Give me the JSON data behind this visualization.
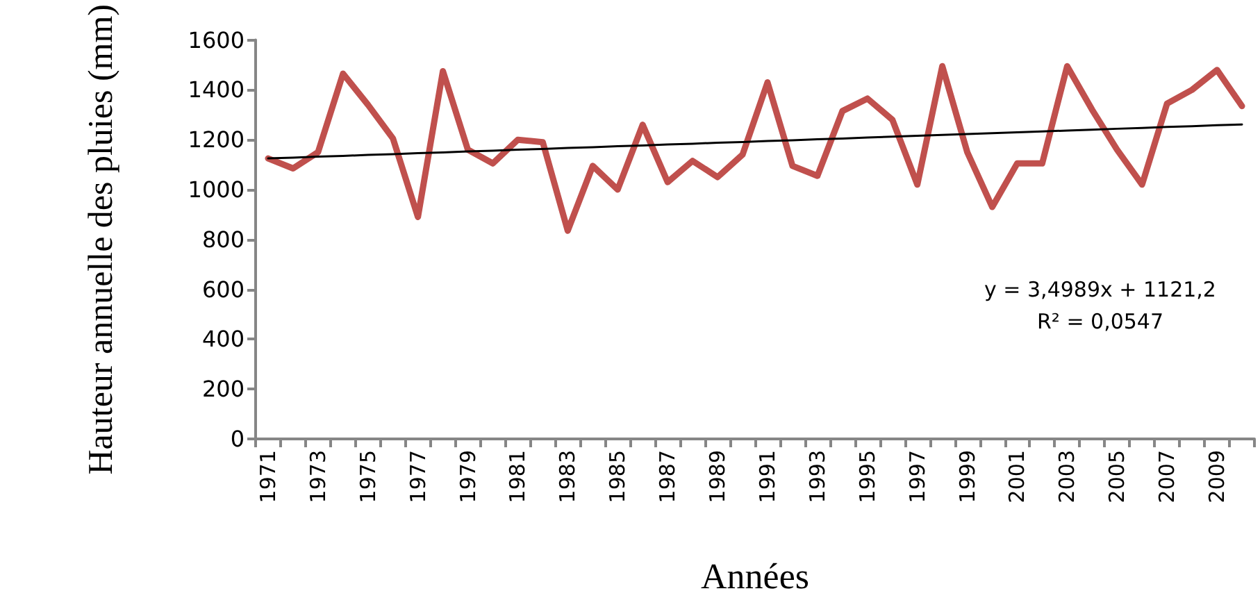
{
  "chart_data": {
    "type": "line",
    "xlabel": "Années",
    "ylabel": "Hauteur annuelle des pluies (mm)",
    "categories": [
      "1971",
      null,
      "1973",
      null,
      "1975",
      null,
      "1977",
      null,
      "1979",
      null,
      "1981",
      null,
      "1983",
      null,
      "1985",
      null,
      "1987",
      null,
      "1989",
      null,
      "1991",
      null,
      "1993",
      null,
      "1995",
      null,
      "1997",
      null,
      "1999",
      null,
      "2001",
      null,
      "2003",
      null,
      "2005",
      null,
      "2007",
      null,
      "2009",
      null
    ],
    "series": [
      {
        "color": "#c0504d",
        "values": [
          1125,
          1085,
          1150,
          1465,
          1340,
          1205,
          890,
          1475,
          1160,
          1105,
          1200,
          1190,
          835,
          1095,
          1000,
          1260,
          1030,
          1115,
          1050,
          1140,
          1430,
          1095,
          1055,
          1315,
          1365,
          1280,
          1020,
          1495,
          1150,
          930,
          1105,
          1105,
          1495,
          1320,
          1160,
          1020,
          1345,
          1400,
          1480,
          1335
        ]
      },
      {
        "color": "#000000",
        "values": [
          1125,
          1128,
          1132,
          1135,
          1139,
          1142,
          1146,
          1149,
          1153,
          1156,
          1160,
          1163,
          1167,
          1170,
          1174,
          1177,
          1181,
          1184,
          1188,
          1191,
          1195,
          1198,
          1202,
          1205,
          1209,
          1212,
          1216,
          1219,
          1223,
          1226,
          1230,
          1233,
          1237,
          1240,
          1244,
          1247,
          1251,
          1254,
          1258,
          1261
        ]
      }
    ],
    "ylim": [
      0,
      1600
    ],
    "yticks": [
      0,
      200,
      400,
      600,
      800,
      1000,
      1200,
      1400,
      1600
    ],
    "annotations": [
      "y = 3,4989x + 1121,2",
      "R² = 0,0547"
    ],
    "grid": false,
    "marker": "none",
    "line_style": "solid"
  }
}
